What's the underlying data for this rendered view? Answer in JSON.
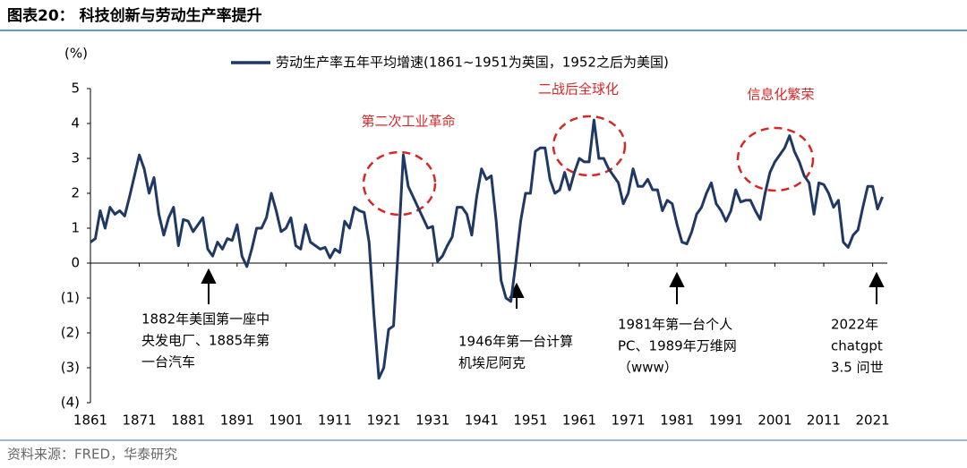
{
  "header": {
    "title": "图表20： 科技创新与劳动生产率提升"
  },
  "chart_data": {
    "type": "line",
    "y_label": "(%)",
    "x": [
      1861,
      1862,
      1863,
      1864,
      1865,
      1866,
      1867,
      1868,
      1869,
      1870,
      1871,
      1872,
      1873,
      1874,
      1875,
      1876,
      1877,
      1878,
      1879,
      1880,
      1881,
      1882,
      1883,
      1884,
      1885,
      1886,
      1887,
      1888,
      1889,
      1890,
      1891,
      1892,
      1893,
      1894,
      1895,
      1896,
      1897,
      1898,
      1899,
      1900,
      1901,
      1902,
      1903,
      1904,
      1905,
      1906,
      1907,
      1908,
      1909,
      1910,
      1911,
      1912,
      1913,
      1914,
      1915,
      1916,
      1917,
      1918,
      1919,
      1920,
      1921,
      1922,
      1923,
      1924,
      1925,
      1926,
      1927,
      1928,
      1929,
      1930,
      1931,
      1932,
      1933,
      1934,
      1935,
      1936,
      1937,
      1938,
      1939,
      1940,
      1941,
      1942,
      1943,
      1944,
      1945,
      1946,
      1947,
      1948,
      1949,
      1950,
      1951,
      1952,
      1953,
      1954,
      1955,
      1956,
      1957,
      1958,
      1959,
      1960,
      1961,
      1962,
      1963,
      1964,
      1965,
      1966,
      1967,
      1968,
      1969,
      1970,
      1971,
      1972,
      1973,
      1974,
      1975,
      1976,
      1977,
      1978,
      1979,
      1980,
      1981,
      1982,
      1983,
      1984,
      1985,
      1986,
      1987,
      1988,
      1989,
      1990,
      1991,
      1992,
      1993,
      1994,
      1995,
      1996,
      1997,
      1998,
      1999,
      2000,
      2001,
      2002,
      2003,
      2004,
      2005,
      2006,
      2007,
      2008,
      2009,
      2010,
      2011,
      2012,
      2013,
      2014,
      2015,
      2016,
      2017,
      2018,
      2019,
      2020,
      2021,
      2022,
      2023
    ],
    "series": [
      {
        "name": "劳动生产率五年平均增速(1861~1951为英国，1952之后为美国)",
        "color": "#1f3864",
        "values": [
          0.6,
          0.7,
          1.5,
          1.0,
          1.6,
          1.4,
          1.5,
          1.35,
          1.9,
          2.5,
          3.1,
          2.7,
          2.0,
          2.45,
          1.4,
          0.8,
          1.3,
          1.6,
          0.5,
          1.25,
          1.2,
          0.9,
          1.1,
          1.3,
          0.4,
          0.2,
          0.6,
          0.4,
          0.7,
          0.65,
          1.1,
          0.2,
          -0.1,
          0.4,
          1.0,
          1.0,
          1.3,
          2.0,
          1.5,
          0.9,
          1.0,
          1.3,
          0.5,
          0.4,
          1.1,
          0.6,
          0.5,
          0.4,
          0.45,
          0.15,
          0.4,
          0.3,
          1.2,
          1.0,
          1.6,
          1.5,
          1.45,
          0.6,
          -1.5,
          -3.3,
          -3.0,
          -1.9,
          -1.8,
          0.5,
          3.1,
          2.2,
          1.9,
          1.6,
          1.3,
          1.0,
          1.05,
          0.05,
          0.2,
          0.5,
          0.75,
          1.6,
          1.6,
          1.4,
          0.8,
          1.9,
          2.7,
          2.4,
          2.5,
          1.2,
          -0.5,
          -1.0,
          -1.1,
          0.0,
          1.2,
          2.0,
          2.0,
          3.2,
          3.3,
          3.3,
          2.4,
          2.0,
          2.1,
          2.6,
          2.1,
          2.6,
          3.0,
          2.9,
          2.9,
          4.1,
          3.0,
          3.0,
          2.7,
          2.5,
          2.3,
          1.7,
          2.0,
          2.7,
          2.2,
          2.2,
          2.4,
          2.1,
          2.1,
          1.5,
          1.8,
          1.7,
          1.1,
          0.6,
          0.55,
          0.9,
          1.4,
          1.6,
          2.0,
          2.3,
          1.7,
          1.5,
          1.2,
          1.5,
          2.1,
          1.75,
          1.8,
          1.8,
          1.5,
          1.25,
          2.0,
          2.6,
          2.9,
          3.1,
          3.3,
          3.65,
          3.2,
          2.9,
          2.5,
          2.3,
          1.4,
          2.3,
          2.25,
          2.0,
          1.6,
          1.8,
          0.6,
          0.45,
          0.8,
          0.95,
          1.6,
          2.2,
          2.2,
          1.55,
          1.9
        ]
      }
    ],
    "xlim": [
      1861,
      2024
    ],
    "xticks": [
      1861,
      1871,
      1881,
      1891,
      1901,
      1911,
      1921,
      1931,
      1941,
      1951,
      1961,
      1971,
      1981,
      1991,
      2001,
      2011,
      2021
    ],
    "ylim": [
      -4,
      5
    ],
    "yticks": [
      {
        "value": -4,
        "label": "(4)"
      },
      {
        "value": -3,
        "label": "(3)"
      },
      {
        "value": -2,
        "label": "(2)"
      },
      {
        "value": -1,
        "label": "(1)"
      },
      0,
      1,
      2,
      3,
      4,
      5
    ],
    "highlights": [
      "第二次工业革命",
      "二战后全球化",
      "信息化繁荣"
    ],
    "annotations": [
      {
        "lines": [
          "1882年美国第一座中",
          "央发电厂、1885年第",
          "一台汽车"
        ]
      },
      {
        "lines": [
          "1946年第一台计算",
          "机埃尼阿克"
        ]
      },
      {
        "lines": [
          "1981年第一台个人",
          "PC、1989年万维网",
          "（www）"
        ]
      },
      {
        "lines": [
          "2022年",
          "chatgpt",
          "3.5 问世"
        ]
      }
    ]
  },
  "footer": {
    "source": "资料来源：FRED，华泰研究"
  }
}
